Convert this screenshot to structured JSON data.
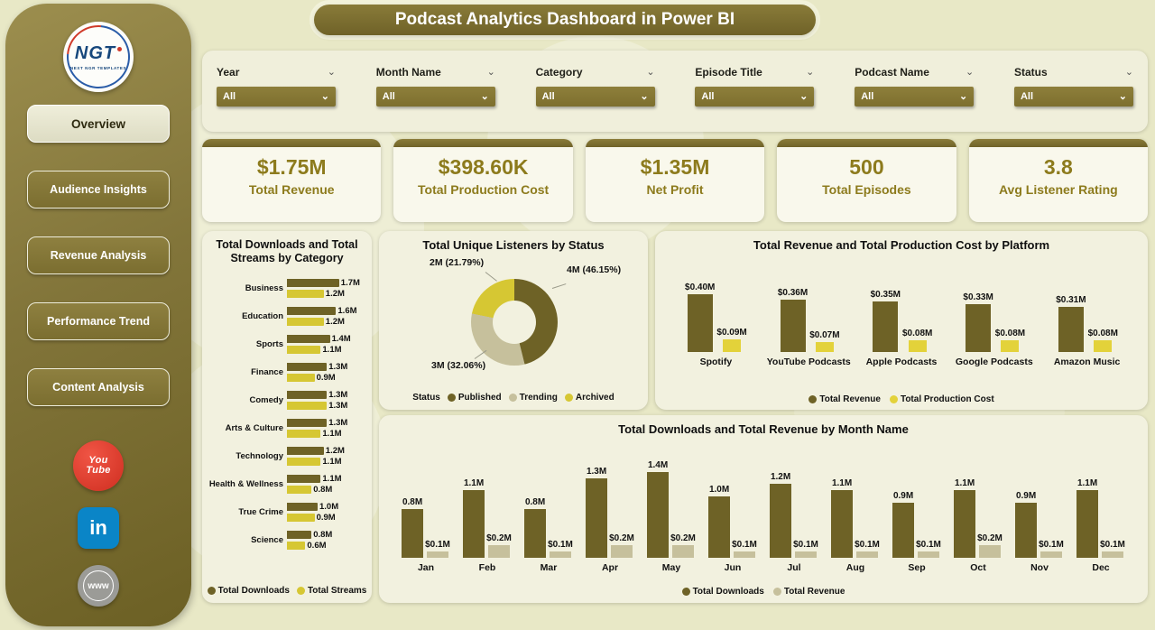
{
  "app": {
    "title": "Podcast Analytics Dashboard in Power BI"
  },
  "sidebar": {
    "logo_text": "NGT",
    "logo_subtext": "NEXT NGR TEMPLATES",
    "nav": [
      {
        "label": "Overview",
        "active": true
      },
      {
        "label": "Audience Insights",
        "active": false
      },
      {
        "label": "Revenue Analysis",
        "active": false
      },
      {
        "label": "Performance Trend",
        "active": false
      },
      {
        "label": "Content Analysis",
        "active": false
      }
    ],
    "social": [
      {
        "name": "youtube",
        "lines": [
          "You",
          "Tube"
        ]
      },
      {
        "name": "linkedin",
        "text": "in"
      },
      {
        "name": "web",
        "text": "www"
      }
    ]
  },
  "filters": [
    {
      "label": "Year",
      "value": "All"
    },
    {
      "label": "Month Name",
      "value": "All"
    },
    {
      "label": "Category",
      "value": "All"
    },
    {
      "label": "Episode Title",
      "value": "All"
    },
    {
      "label": "Podcast Name",
      "value": "All"
    },
    {
      "label": "Status",
      "value": "All"
    }
  ],
  "kpis": [
    {
      "value": "$1.75M",
      "label": "Total Revenue"
    },
    {
      "value": "$398.60K",
      "label": "Total Production Cost"
    },
    {
      "value": "$1.35M",
      "label": "Net Profit"
    },
    {
      "value": "500",
      "label": "Total Episodes"
    },
    {
      "value": "3.8",
      "label": "Avg Listener Rating"
    }
  ],
  "chart_data": [
    {
      "id": "category_bars",
      "type": "bar",
      "orientation": "horizontal",
      "title": "Total Downloads and Total Streams by Category",
      "categories": [
        "Business",
        "Education",
        "Sports",
        "Finance",
        "Comedy",
        "Arts & Culture",
        "Technology",
        "Health & Wellness",
        "True Crime",
        "Science"
      ],
      "series": [
        {
          "name": "Total Downloads",
          "color": "#6e6226",
          "values": [
            1.7,
            1.6,
            1.4,
            1.3,
            1.3,
            1.3,
            1.2,
            1.1,
            1.0,
            0.8
          ],
          "labels": [
            "1.7M",
            "1.6M",
            "1.4M",
            "1.3M",
            "1.3M",
            "1.3M",
            "1.2M",
            "1.1M",
            "1.0M",
            "0.8M"
          ]
        },
        {
          "name": "Total Streams",
          "color": "#d6c733",
          "values": [
            1.2,
            1.2,
            1.1,
            0.9,
            1.3,
            1.1,
            1.1,
            0.8,
            0.9,
            0.6
          ],
          "labels": [
            "1.2M",
            "1.2M",
            "1.1M",
            "0.9M",
            "1.3M",
            "1.1M",
            "1.1M",
            "0.8M",
            "0.9M",
            "0.6M"
          ]
        }
      ],
      "xlim": [
        0,
        1.8
      ],
      "legend_position": "bottom"
    },
    {
      "id": "status_donut",
      "type": "pie",
      "title": "Total Unique Listeners by Status",
      "legend_title": "Status",
      "slices": [
        {
          "name": "Published",
          "color": "#6e6226",
          "value": "4M",
          "pct": 46.15,
          "display": "4M (46.15%)"
        },
        {
          "name": "Trending",
          "color": "#c6c09c",
          "value": "3M",
          "pct": 32.06,
          "display": "3M (32.06%)"
        },
        {
          "name": "Archived",
          "color": "#d6c733",
          "value": "2M",
          "pct": 21.79,
          "display": "2M (21.79%)"
        }
      ],
      "legend_position": "bottom"
    },
    {
      "id": "platform_columns",
      "type": "bar",
      "title": "Total Revenue and Total Production Cost by Platform",
      "categories": [
        "Spotify",
        "YouTube Podcasts",
        "Apple Podcasts",
        "Google Podcasts",
        "Amazon Music"
      ],
      "series": [
        {
          "name": "Total Revenue",
          "color": "#6e6226",
          "values": [
            0.4,
            0.36,
            0.35,
            0.33,
            0.31
          ],
          "labels": [
            "$0.40M",
            "$0.36M",
            "$0.35M",
            "$0.33M",
            "$0.31M"
          ]
        },
        {
          "name": "Total Production Cost",
          "color": "#e3d23a",
          "values": [
            0.09,
            0.07,
            0.08,
            0.08,
            0.08
          ],
          "labels": [
            "$0.09M",
            "$0.07M",
            "$0.08M",
            "$0.08M",
            "$0.08M"
          ]
        }
      ],
      "ylim": [
        0,
        0.45
      ],
      "legend_position": "bottom"
    },
    {
      "id": "month_columns",
      "type": "bar",
      "title": "Total Downloads and Total Revenue by Month Name",
      "categories": [
        "Jan",
        "Feb",
        "Mar",
        "Apr",
        "May",
        "Jun",
        "Jul",
        "Aug",
        "Sep",
        "Oct",
        "Nov",
        "Dec"
      ],
      "series": [
        {
          "name": "Total Downloads",
          "color": "#6e6226",
          "values": [
            0.8,
            1.1,
            0.8,
            1.3,
            1.4,
            1.0,
            1.2,
            1.1,
            0.9,
            1.1,
            0.9,
            1.1
          ],
          "labels": [
            "0.8M",
            "1.1M",
            "0.8M",
            "1.3M",
            "1.4M",
            "1.0M",
            "1.2M",
            "1.1M",
            "0.9M",
            "1.1M",
            "0.9M",
            "1.1M"
          ]
        },
        {
          "name": "Total Revenue",
          "color": "#c6c09c",
          "values": [
            0.1,
            0.2,
            0.1,
            0.2,
            0.2,
            0.1,
            0.1,
            0.1,
            0.1,
            0.2,
            0.1,
            0.1
          ],
          "labels": [
            "$0.1M",
            "$0.2M",
            "$0.1M",
            "$0.2M",
            "$0.2M",
            "$0.1M",
            "$0.1M",
            "$0.1M",
            "$0.1M",
            "$0.2M",
            "$0.1M",
            "$0.1M"
          ]
        }
      ],
      "ylim": [
        0,
        1.6
      ],
      "legend_position": "bottom"
    }
  ]
}
